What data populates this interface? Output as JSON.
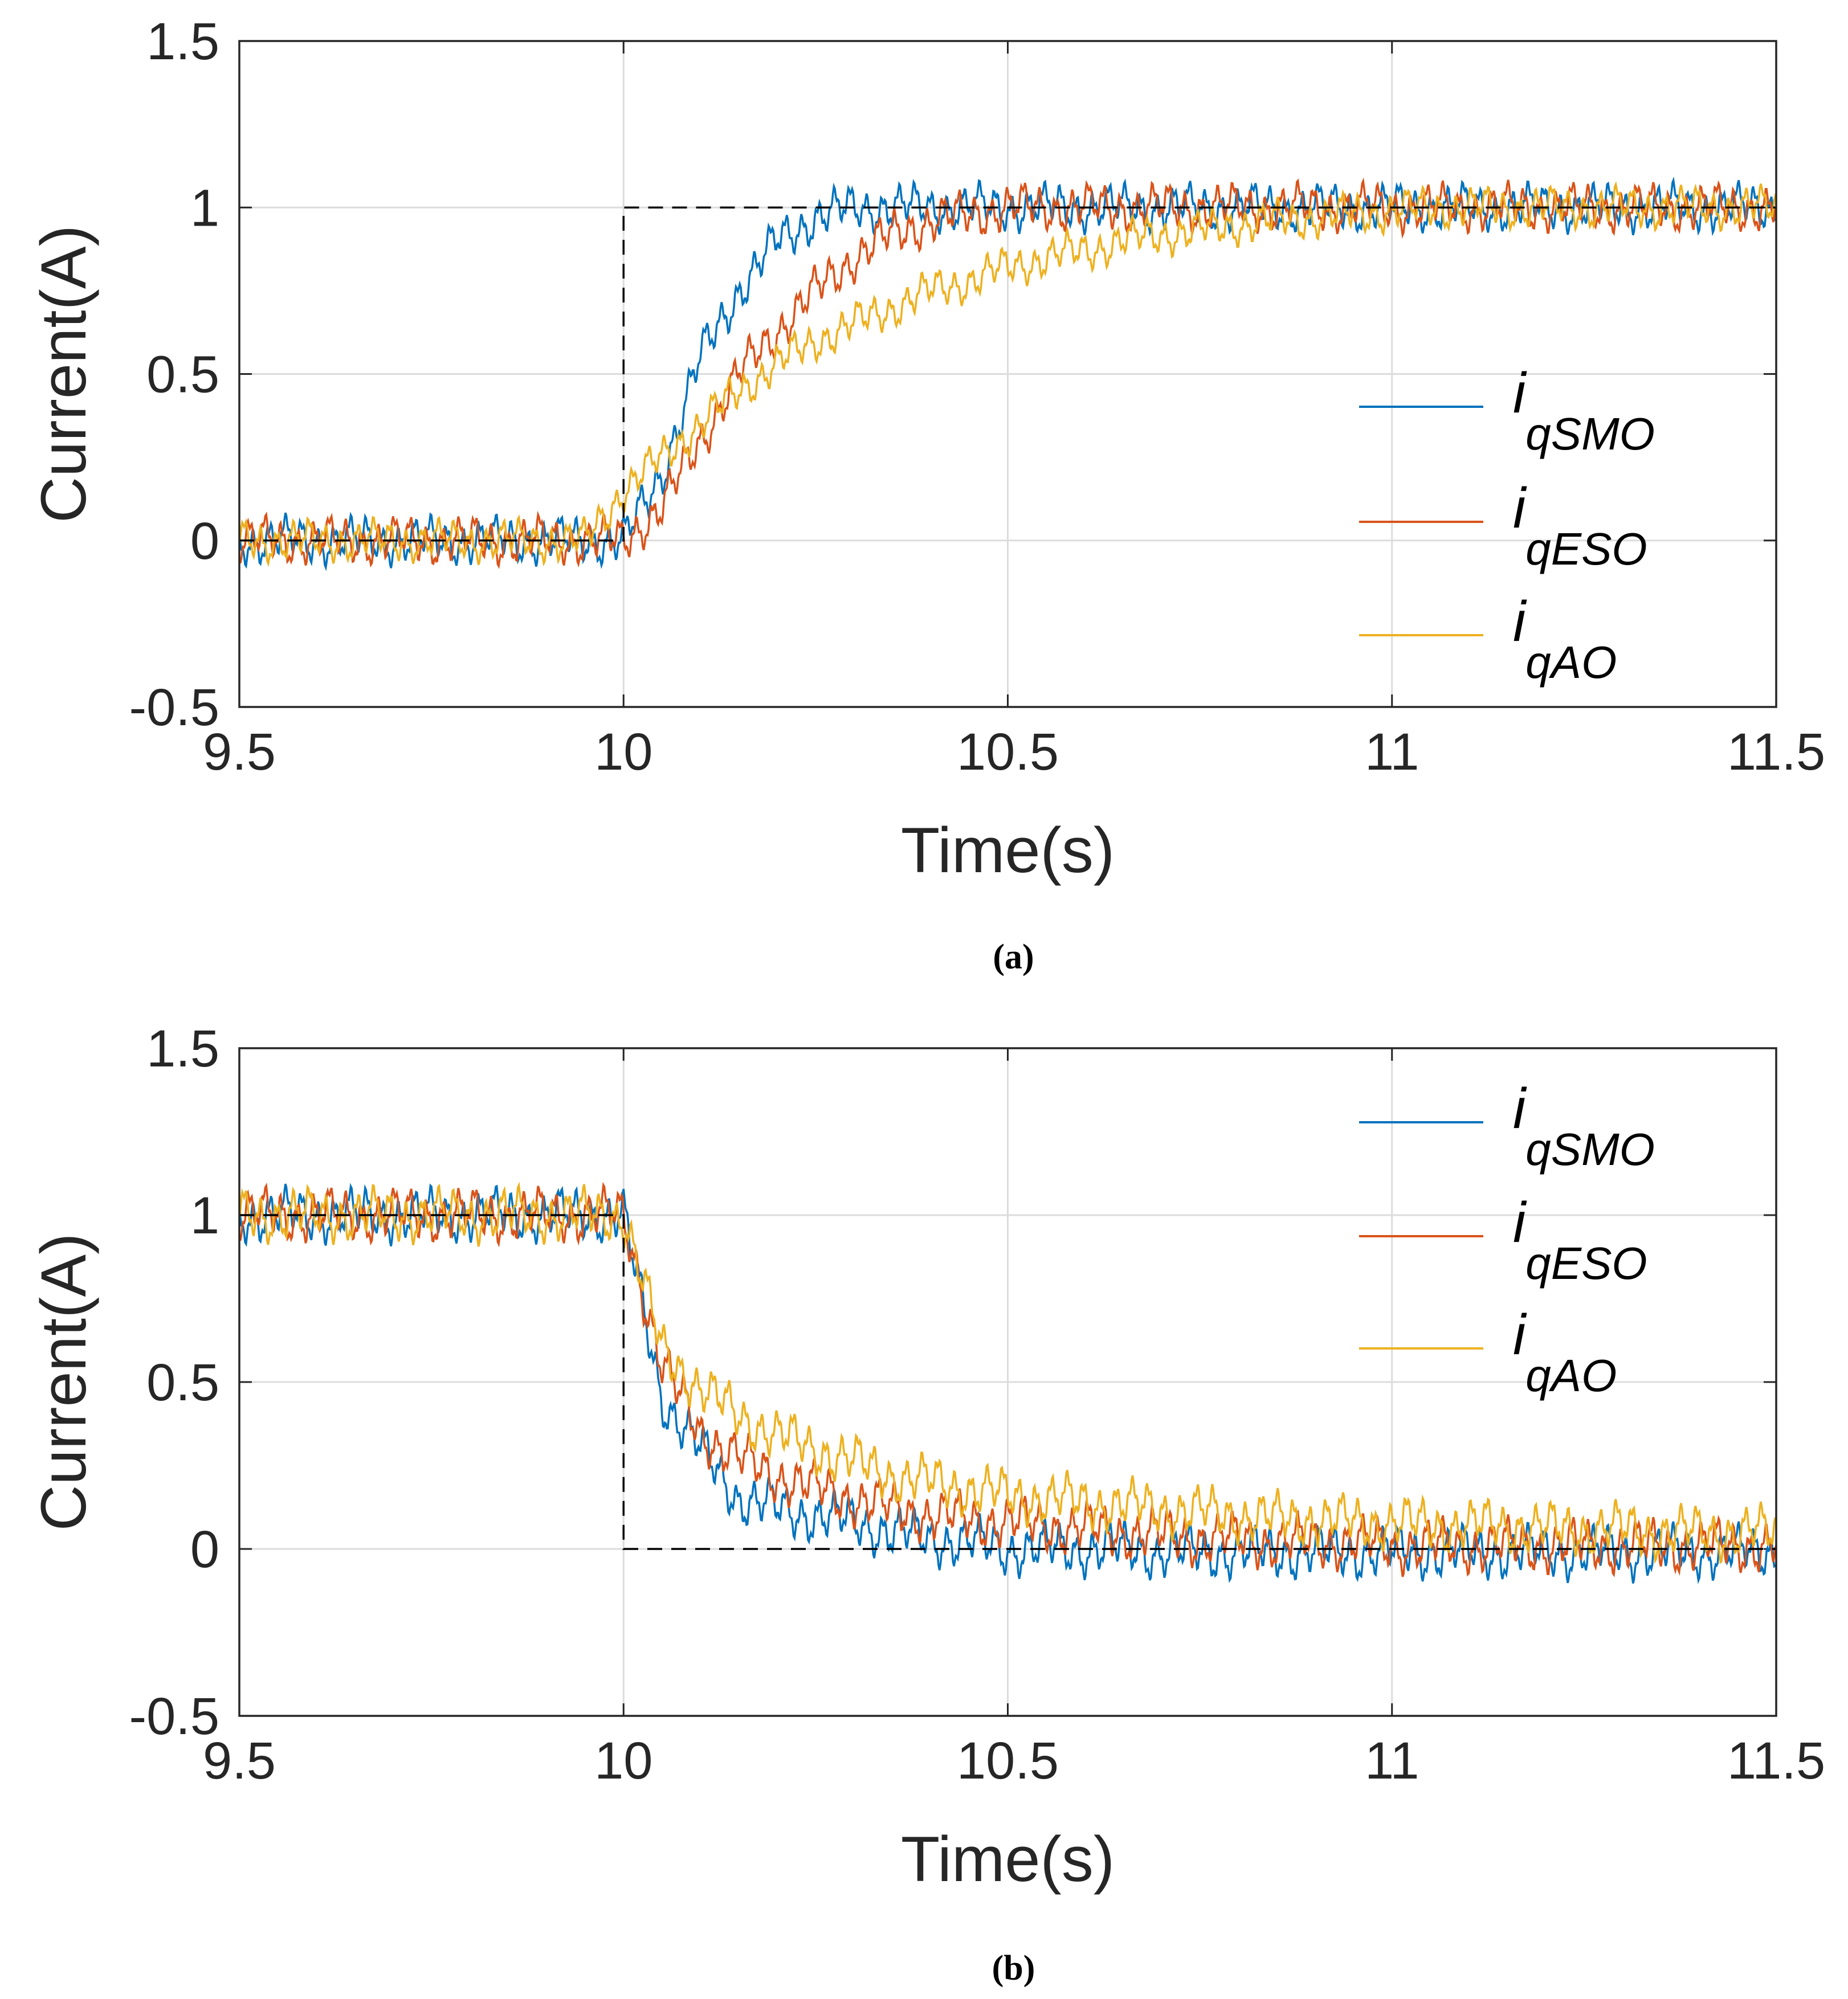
{
  "chart_data": [
    {
      "type": "line",
      "caption": "(a)",
      "xlabel": "Time(s)",
      "ylabel": "Current(A)",
      "xlim": [
        9.5,
        11.5
      ],
      "ylim": [
        -0.5,
        1.5
      ],
      "xticks": [
        "9.5",
        "10",
        "10.5",
        "11",
        "11.5"
      ],
      "yticks": [
        "-0.5",
        "0",
        "0.5",
        "1",
        "1.5"
      ],
      "grid": true,
      "legend_position": "right-middle",
      "x": [
        9.5,
        9.55,
        9.6,
        9.65,
        9.7,
        9.75,
        9.8,
        9.85,
        9.9,
        9.95,
        10.0,
        10.05,
        10.1,
        10.15,
        10.2,
        10.25,
        10.3,
        10.35,
        10.4,
        10.45,
        10.5,
        10.55,
        10.6,
        10.65,
        10.7,
        10.75,
        10.8,
        10.85,
        10.9,
        10.95,
        11.0,
        11.05,
        11.1,
        11.15,
        11.2,
        11.25,
        11.3,
        11.35,
        11.4,
        11.45,
        11.5
      ],
      "reference": {
        "name": "reference",
        "style": "dashed",
        "color": "#000000",
        "x": [
          9.5,
          10.0,
          10.0,
          11.5
        ],
        "values": [
          0,
          0,
          1,
          1
        ]
      },
      "series": [
        {
          "name": "iqSMO",
          "legend_main": "i",
          "legend_sub": "qSMO",
          "color": "#0072BD",
          "ripple_amplitude": 0.08,
          "values": [
            0,
            0,
            0,
            0,
            0,
            0,
            0,
            0,
            0,
            0,
            0,
            0.2,
            0.55,
            0.75,
            0.9,
            0.97,
            1.0,
            1.0,
            1.0,
            1.0,
            1.0,
            1.0,
            1.0,
            1.0,
            1.0,
            1.0,
            1.0,
            1.0,
            1.0,
            1.0,
            1.0,
            1.0,
            1.0,
            1.0,
            1.0,
            1.0,
            1.0,
            1.0,
            1.0,
            1.0,
            1.0
          ]
        },
        {
          "name": "iqESO",
          "legend_main": "i",
          "legend_sub": "qESO",
          "color": "#D95319",
          "ripple_amplitude": 0.08,
          "values": [
            0,
            0,
            0,
            0,
            0,
            0,
            0,
            0,
            0,
            0,
            0,
            0.1,
            0.3,
            0.5,
            0.63,
            0.75,
            0.85,
            0.92,
            0.96,
            0.98,
            1.0,
            1.0,
            1.0,
            1.0,
            1.0,
            1.0,
            1.0,
            1.0,
            1.0,
            1.0,
            1.0,
            1.0,
            1.0,
            1.0,
            1.0,
            1.0,
            1.0,
            1.0,
            1.0,
            1.0,
            1.0
          ]
        },
        {
          "name": "iqAO",
          "legend_main": "i",
          "legend_sub": "qAO",
          "color": "#EDB120",
          "ripple_amplitude": 0.07,
          "values": [
            0,
            0,
            0,
            0,
            0,
            0,
            0,
            0,
            0,
            0,
            0.15,
            0.25,
            0.35,
            0.45,
            0.53,
            0.6,
            0.65,
            0.7,
            0.75,
            0.78,
            0.82,
            0.85,
            0.87,
            0.9,
            0.92,
            0.93,
            0.95,
            0.96,
            0.97,
            0.98,
            0.99,
            1.0,
            1.0,
            1.0,
            1.0,
            1.0,
            1.0,
            1.0,
            1.0,
            1.0,
            1.0
          ]
        }
      ]
    },
    {
      "type": "line",
      "caption": "(b)",
      "xlabel": "Time(s)",
      "ylabel": "Current(A)",
      "xlim": [
        9.5,
        11.5
      ],
      "ylim": [
        -0.5,
        1.5
      ],
      "xticks": [
        "9.5",
        "10",
        "10.5",
        "11",
        "11.5"
      ],
      "yticks": [
        "-0.5",
        "0",
        "0.5",
        "1",
        "1.5"
      ],
      "grid": true,
      "legend_position": "top-right",
      "x": [
        9.5,
        9.55,
        9.6,
        9.65,
        9.7,
        9.75,
        9.8,
        9.85,
        9.9,
        9.95,
        10.0,
        10.05,
        10.1,
        10.15,
        10.2,
        10.25,
        10.3,
        10.35,
        10.4,
        10.45,
        10.5,
        10.55,
        10.6,
        10.65,
        10.7,
        10.75,
        10.8,
        10.85,
        10.9,
        10.95,
        11.0,
        11.05,
        11.1,
        11.15,
        11.2,
        11.25,
        11.3,
        11.35,
        11.4,
        11.45,
        11.5
      ],
      "reference": {
        "name": "reference",
        "style": "dashed",
        "color": "#000000",
        "x": [
          9.5,
          10.0,
          10.0,
          11.5
        ],
        "values": [
          1,
          1,
          0,
          0
        ]
      },
      "series": [
        {
          "name": "iqSMO",
          "legend_main": "i",
          "legend_sub": "qSMO",
          "color": "#0072BD",
          "ripple_amplitude": 0.09,
          "values": [
            1,
            1,
            1,
            1,
            1,
            1,
            1,
            1,
            1,
            1,
            1.0,
            0.45,
            0.3,
            0.15,
            0.12,
            0.1,
            0.08,
            0.05,
            0.03,
            0.02,
            0.0,
            0.0,
            0.0,
            0.0,
            -0.01,
            -0.01,
            -0.01,
            -0.01,
            -0.01,
            -0.01,
            -0.01,
            -0.01,
            -0.01,
            -0.01,
            -0.01,
            -0.01,
            -0.01,
            -0.01,
            -0.01,
            -0.01,
            -0.01
          ]
        },
        {
          "name": "iqESO",
          "legend_main": "i",
          "legend_sub": "qESO",
          "color": "#D95319",
          "ripple_amplitude": 0.09,
          "values": [
            1,
            1,
            1,
            1,
            1,
            1,
            1,
            1,
            1,
            1,
            1.0,
            0.55,
            0.35,
            0.27,
            0.22,
            0.18,
            0.15,
            0.12,
            0.1,
            0.09,
            0.08,
            0.07,
            0.06,
            0.05,
            0.04,
            0.03,
            0.03,
            0.02,
            0.02,
            0.02,
            0.01,
            0.01,
            0.01,
            0.01,
            0.01,
            0.01,
            0.01,
            0.01,
            0.01,
            0.01,
            0.01
          ]
        },
        {
          "name": "iqAO",
          "legend_main": "i",
          "legend_sub": "qAO",
          "color": "#EDB120",
          "ripple_amplitude": 0.09,
          "values": [
            1,
            1,
            1,
            1,
            1,
            1,
            1,
            1,
            1,
            1,
            1.0,
            0.6,
            0.48,
            0.4,
            0.34,
            0.3,
            0.26,
            0.22,
            0.2,
            0.18,
            0.16,
            0.15,
            0.14,
            0.13,
            0.12,
            0.11,
            0.1,
            0.09,
            0.09,
            0.08,
            0.08,
            0.07,
            0.07,
            0.07,
            0.06,
            0.06,
            0.06,
            0.05,
            0.05,
            0.05,
            0.05
          ]
        }
      ]
    }
  ]
}
